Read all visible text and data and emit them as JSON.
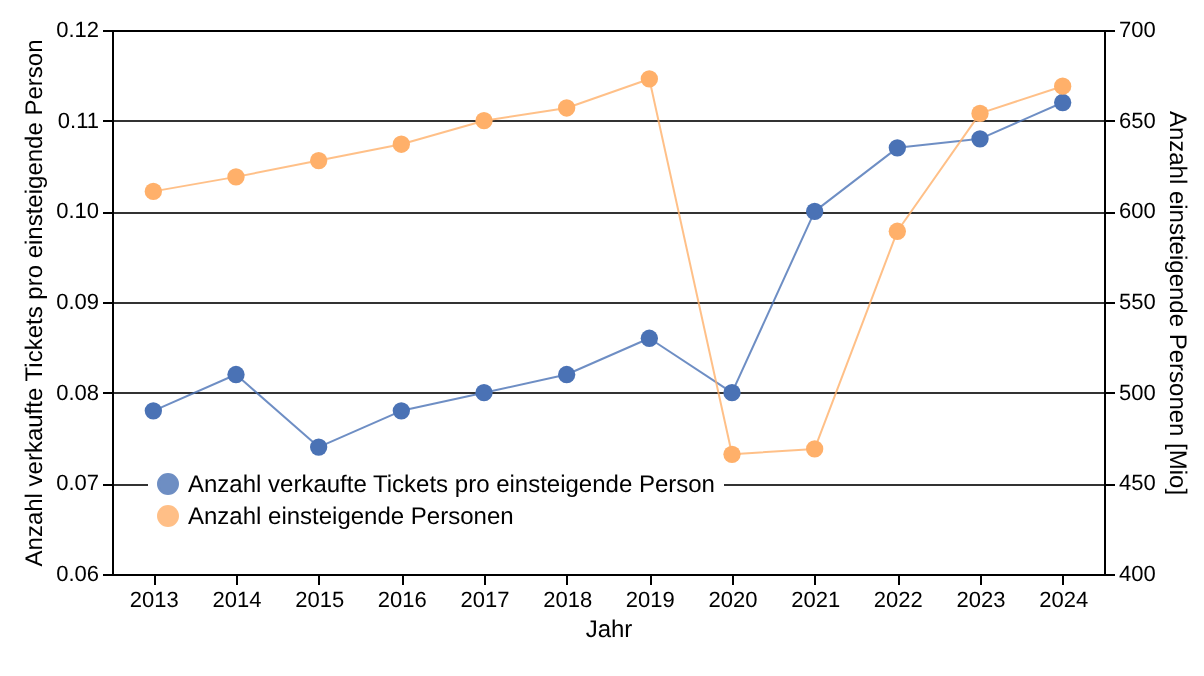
{
  "chart_data": {
    "type": "line",
    "xlabel": "Jahr",
    "ylabel": "Anzahl verkaufte Tickets pro einsteigende Person",
    "y2label": "Anzahl einsteigende Personen [Mio]",
    "categories": [
      "2013",
      "2014",
      "2015",
      "2016",
      "2017",
      "2018",
      "2019",
      "2020",
      "2021",
      "2022",
      "2023",
      "2024"
    ],
    "series": [
      {
        "name": "Anzahl verkaufte Tickets pro einsteigende Person",
        "color": "#4a72b5",
        "values": [
          0.078,
          0.082,
          0.074,
          0.078,
          0.08,
          0.082,
          0.086,
          0.08,
          0.1,
          0.107,
          0.108,
          0.112
        ]
      },
      {
        "name": "Anzahl einsteigende Personen",
        "color": "#ffb06a",
        "axis": "y2",
        "values": [
          611,
          619,
          628,
          637,
          650,
          657,
          673,
          466,
          469,
          589,
          654,
          669
        ]
      }
    ],
    "ylim": [
      0.06,
      0.12
    ],
    "yticks": [
      0.06,
      0.07,
      0.08,
      0.09,
      {
        "value": 0.1,
        "label": "0.10"
      },
      0.11,
      0.12
    ],
    "y2lim": [
      400,
      700
    ],
    "y2ticks": [
      400,
      450,
      500,
      550,
      600,
      650,
      700
    ],
    "grid": "y",
    "legend": "bottom left",
    "marker": "circle",
    "line_style": "solid"
  }
}
